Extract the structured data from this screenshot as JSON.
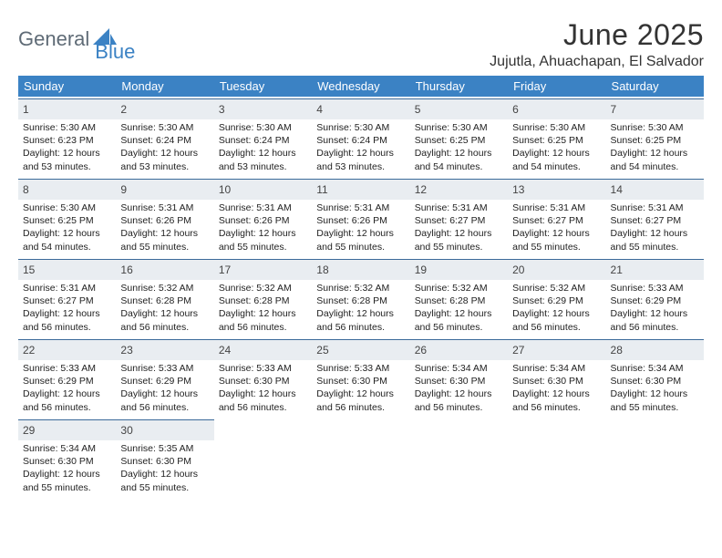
{
  "logo": {
    "word1": "General",
    "word2": "Blue",
    "color1": "#5f6b76",
    "color2": "#3b82c4"
  },
  "title": "June 2025",
  "location": "Jujutla, Ahuachapan, El Salvador",
  "headers": [
    "Sunday",
    "Monday",
    "Tuesday",
    "Wednesday",
    "Thursday",
    "Friday",
    "Saturday"
  ],
  "colors": {
    "header_bg": "#3b82c4",
    "header_fg": "#ffffff",
    "dayrow_bg": "#e9edf1",
    "dayrow_border": "#3b6a9a"
  },
  "days": [
    {
      "n": 1,
      "rise": "5:30 AM",
      "set": "6:23 PM",
      "dl": "12 hours and 53 minutes."
    },
    {
      "n": 2,
      "rise": "5:30 AM",
      "set": "6:24 PM",
      "dl": "12 hours and 53 minutes."
    },
    {
      "n": 3,
      "rise": "5:30 AM",
      "set": "6:24 PM",
      "dl": "12 hours and 53 minutes."
    },
    {
      "n": 4,
      "rise": "5:30 AM",
      "set": "6:24 PM",
      "dl": "12 hours and 53 minutes."
    },
    {
      "n": 5,
      "rise": "5:30 AM",
      "set": "6:25 PM",
      "dl": "12 hours and 54 minutes."
    },
    {
      "n": 6,
      "rise": "5:30 AM",
      "set": "6:25 PM",
      "dl": "12 hours and 54 minutes."
    },
    {
      "n": 7,
      "rise": "5:30 AM",
      "set": "6:25 PM",
      "dl": "12 hours and 54 minutes."
    },
    {
      "n": 8,
      "rise": "5:30 AM",
      "set": "6:25 PM",
      "dl": "12 hours and 54 minutes."
    },
    {
      "n": 9,
      "rise": "5:31 AM",
      "set": "6:26 PM",
      "dl": "12 hours and 55 minutes."
    },
    {
      "n": 10,
      "rise": "5:31 AM",
      "set": "6:26 PM",
      "dl": "12 hours and 55 minutes."
    },
    {
      "n": 11,
      "rise": "5:31 AM",
      "set": "6:26 PM",
      "dl": "12 hours and 55 minutes."
    },
    {
      "n": 12,
      "rise": "5:31 AM",
      "set": "6:27 PM",
      "dl": "12 hours and 55 minutes."
    },
    {
      "n": 13,
      "rise": "5:31 AM",
      "set": "6:27 PM",
      "dl": "12 hours and 55 minutes."
    },
    {
      "n": 14,
      "rise": "5:31 AM",
      "set": "6:27 PM",
      "dl": "12 hours and 55 minutes."
    },
    {
      "n": 15,
      "rise": "5:31 AM",
      "set": "6:27 PM",
      "dl": "12 hours and 56 minutes."
    },
    {
      "n": 16,
      "rise": "5:32 AM",
      "set": "6:28 PM",
      "dl": "12 hours and 56 minutes."
    },
    {
      "n": 17,
      "rise": "5:32 AM",
      "set": "6:28 PM",
      "dl": "12 hours and 56 minutes."
    },
    {
      "n": 18,
      "rise": "5:32 AM",
      "set": "6:28 PM",
      "dl": "12 hours and 56 minutes."
    },
    {
      "n": 19,
      "rise": "5:32 AM",
      "set": "6:28 PM",
      "dl": "12 hours and 56 minutes."
    },
    {
      "n": 20,
      "rise": "5:32 AM",
      "set": "6:29 PM",
      "dl": "12 hours and 56 minutes."
    },
    {
      "n": 21,
      "rise": "5:33 AM",
      "set": "6:29 PM",
      "dl": "12 hours and 56 minutes."
    },
    {
      "n": 22,
      "rise": "5:33 AM",
      "set": "6:29 PM",
      "dl": "12 hours and 56 minutes."
    },
    {
      "n": 23,
      "rise": "5:33 AM",
      "set": "6:29 PM",
      "dl": "12 hours and 56 minutes."
    },
    {
      "n": 24,
      "rise": "5:33 AM",
      "set": "6:30 PM",
      "dl": "12 hours and 56 minutes."
    },
    {
      "n": 25,
      "rise": "5:33 AM",
      "set": "6:30 PM",
      "dl": "12 hours and 56 minutes."
    },
    {
      "n": 26,
      "rise": "5:34 AM",
      "set": "6:30 PM",
      "dl": "12 hours and 56 minutes."
    },
    {
      "n": 27,
      "rise": "5:34 AM",
      "set": "6:30 PM",
      "dl": "12 hours and 56 minutes."
    },
    {
      "n": 28,
      "rise": "5:34 AM",
      "set": "6:30 PM",
      "dl": "12 hours and 55 minutes."
    },
    {
      "n": 29,
      "rise": "5:34 AM",
      "set": "6:30 PM",
      "dl": "12 hours and 55 minutes."
    },
    {
      "n": 30,
      "rise": "5:35 AM",
      "set": "6:30 PM",
      "dl": "12 hours and 55 minutes."
    }
  ],
  "labels": {
    "sunrise": "Sunrise:",
    "sunset": "Sunset:",
    "daylight": "Daylight:"
  },
  "grid": {
    "cols": 7,
    "rows": 5,
    "start_offset": 0
  }
}
